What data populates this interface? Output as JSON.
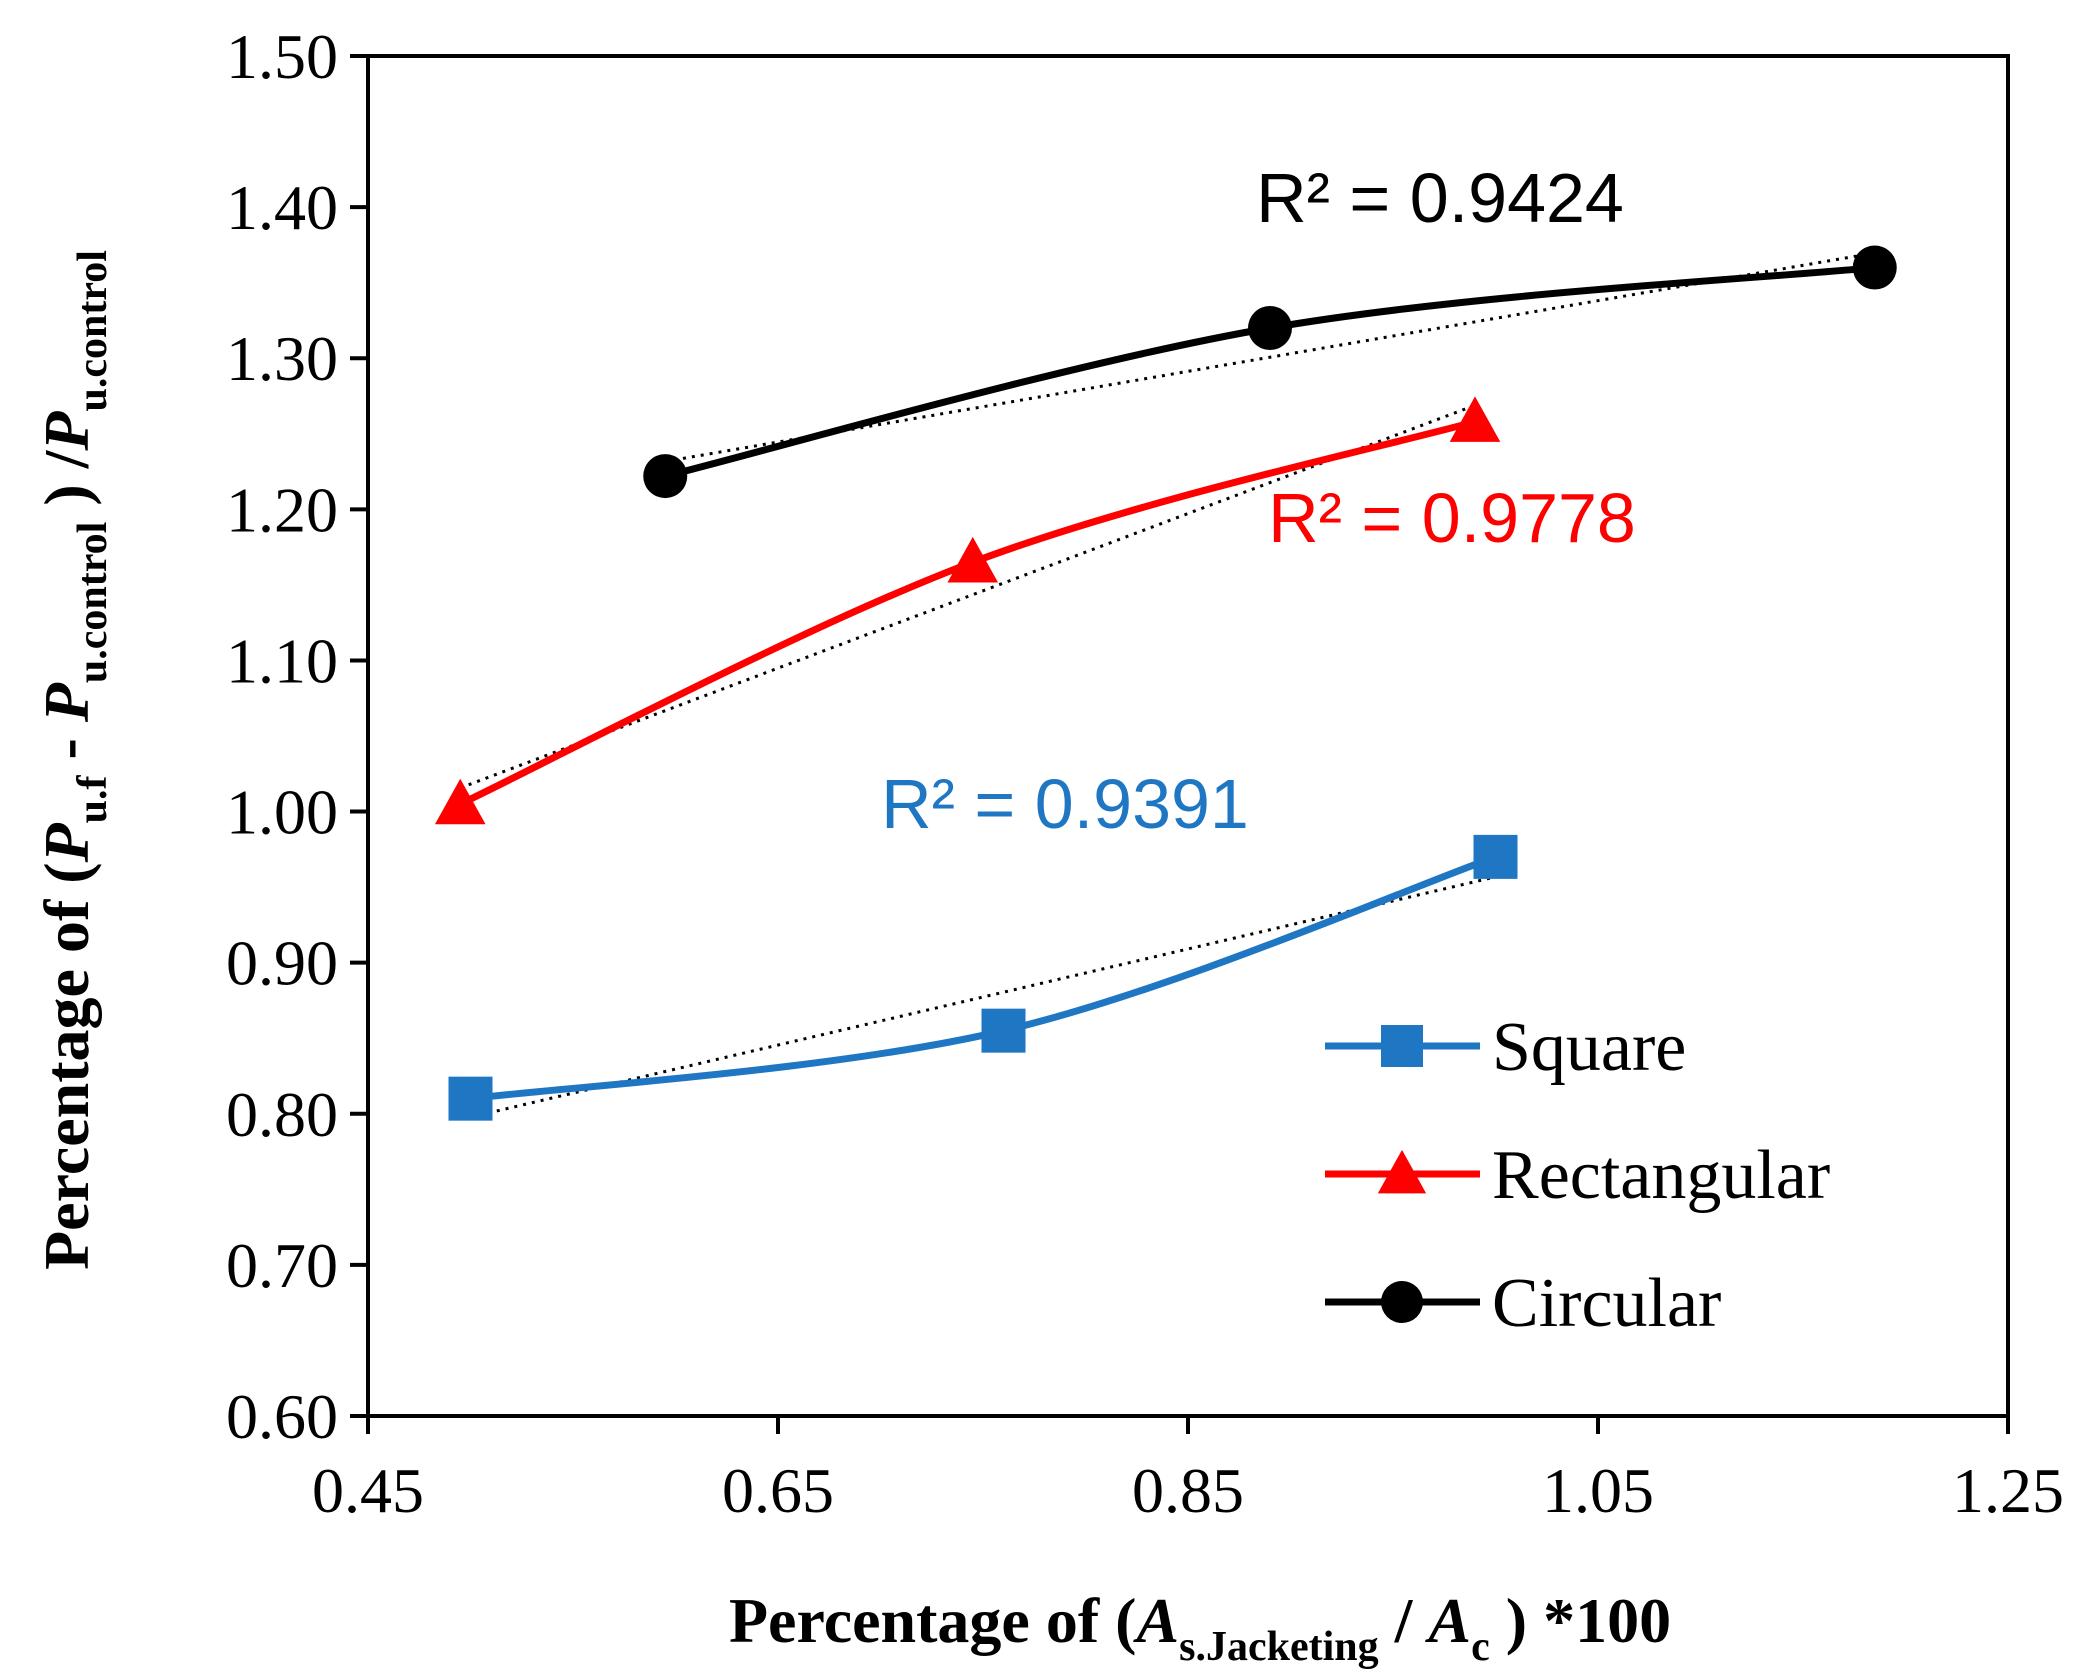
{
  "chart_data": {
    "type": "line",
    "xlim": [
      0.45,
      1.25
    ],
    "ylim": [
      0.6,
      1.5
    ],
    "xticks": [
      "0.45",
      "0.65",
      "0.85",
      "1.05",
      "1.25"
    ],
    "yticks": [
      "0.60",
      "0.70",
      "0.80",
      "0.90",
      "1.00",
      "1.10",
      "1.20",
      "1.30",
      "1.40",
      "1.50"
    ],
    "xlabel": {
      "prefix": "Percentage of (",
      "A1": "A",
      "sub1": "s.Jacketing",
      "mid": " / ",
      "A2": "A",
      "sub2": "c",
      "suffix": " ) *100"
    },
    "ylabel": {
      "prefix": "Percentage of (",
      "P1": "P",
      "sub1": "u.f",
      "mid": " - ",
      "P2": "P",
      "sub2": "u.control",
      "mid2": " ) /",
      "P3": "P",
      "sub3": "u.control"
    },
    "series": [
      {
        "name": "Square",
        "color": "#1f77c4",
        "marker": "square",
        "x": [
          0.5,
          0.76,
          1.0
        ],
        "y": [
          0.81,
          0.855,
          0.97
        ],
        "r2": "R² = 0.9391"
      },
      {
        "name": "Rectangular",
        "color": "#ff0000",
        "marker": "triangle",
        "x": [
          0.495,
          0.745,
          0.99
        ],
        "y": [
          1.005,
          1.165,
          1.258
        ],
        "r2": "R² = 0.9778"
      },
      {
        "name": "Circular",
        "color": "#000000",
        "marker": "circle",
        "x": [
          0.595,
          0.89,
          1.185
        ],
        "y": [
          1.222,
          1.32,
          1.36
        ],
        "r2": "R² = 0.9424"
      }
    ]
  }
}
